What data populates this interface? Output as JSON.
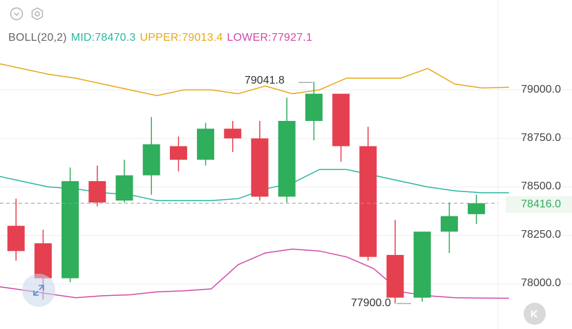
{
  "legend": {
    "indicator": "BOLL(20,2)",
    "mid_label": "MID:78470.3",
    "upper_label": "UPPER:79013.4",
    "lower_label": "LOWER:77927.1"
  },
  "colors": {
    "mid": "#2bb7a0",
    "upper": "#e6a817",
    "lower": "#d24aa8",
    "up": "#2fae5c",
    "down": "#e5404f",
    "grid": "#eeeeee",
    "current_price": "#2fae5c"
  },
  "icons": {
    "top_left": [
      "chevron-down-icon",
      "settings-hexagon-icon"
    ],
    "expand": "expand-arrows-icon",
    "collapse": "collapse-arrow-icon"
  },
  "axis": {
    "y_ticks": [
      "79000.0",
      "78750.0",
      "78500.0",
      "78250.0",
      "78000.0"
    ],
    "current_price": "78416.0"
  },
  "annotations": {
    "high": "79041.8",
    "low": "77900.0"
  },
  "chart_data": {
    "type": "candlestick",
    "ylim": [
      77850,
      79400
    ],
    "y_ticks": [
      78000,
      78250,
      78500,
      78750,
      79000
    ],
    "current_price": 78416.0,
    "candles": [
      {
        "open": 78240,
        "high": 78260,
        "low": 78180,
        "close": 78180
      },
      {
        "open": 78300,
        "high": 78440,
        "low": 78120,
        "close": 78170
      },
      {
        "open": 78210,
        "high": 78280,
        "low": 77920,
        "close": 78030
      },
      {
        "open": 78030,
        "high": 78600,
        "low": 78010,
        "close": 78530
      },
      {
        "open": 78530,
        "high": 78610,
        "low": 78400,
        "close": 78420
      },
      {
        "open": 78430,
        "high": 78640,
        "low": 78420,
        "close": 78560
      },
      {
        "open": 78560,
        "high": 78860,
        "low": 78460,
        "close": 78720
      },
      {
        "open": 78710,
        "high": 78760,
        "low": 78580,
        "close": 78640
      },
      {
        "open": 78640,
        "high": 78830,
        "low": 78610,
        "close": 78800
      },
      {
        "open": 78800,
        "high": 78840,
        "low": 78680,
        "close": 78750
      },
      {
        "open": 78750,
        "high": 78840,
        "low": 78430,
        "close": 78450
      },
      {
        "open": 78450,
        "high": 78960,
        "low": 78420,
        "close": 78840
      },
      {
        "open": 78840,
        "high": 79041.8,
        "low": 78740,
        "close": 78980
      },
      {
        "open": 78980,
        "high": 78980,
        "low": 78630,
        "close": 78710
      },
      {
        "open": 78710,
        "high": 78810,
        "low": 78120,
        "close": 78140
      },
      {
        "open": 78150,
        "high": 78330,
        "low": 77900,
        "close": 77930
      },
      {
        "open": 77930,
        "high": 78270,
        "low": 77910,
        "close": 78270
      },
      {
        "open": 78270,
        "high": 78420,
        "low": 78160,
        "close": 78350
      },
      {
        "open": 78360,
        "high": 78460,
        "low": 78310,
        "close": 78416
      }
    ],
    "bands": {
      "upper": [
        79140,
        79110,
        79080,
        79060,
        79030,
        79000,
        78970,
        79000,
        79000,
        78980,
        79020,
        78980,
        79000,
        79060,
        79060,
        79060,
        79110,
        79030,
        79010,
        79013
      ],
      "mid": [
        78560,
        78530,
        78500,
        78490,
        78470,
        78460,
        78430,
        78430,
        78430,
        78440,
        78490,
        78520,
        78590,
        78590,
        78560,
        78530,
        78500,
        78480,
        78470,
        78470
      ],
      "lower": [
        77990,
        77970,
        77950,
        77930,
        77940,
        77945,
        77960,
        77965,
        77975,
        78100,
        78160,
        78180,
        78170,
        78140,
        78080,
        77960,
        77940,
        77930,
        77928,
        77927
      ]
    }
  }
}
